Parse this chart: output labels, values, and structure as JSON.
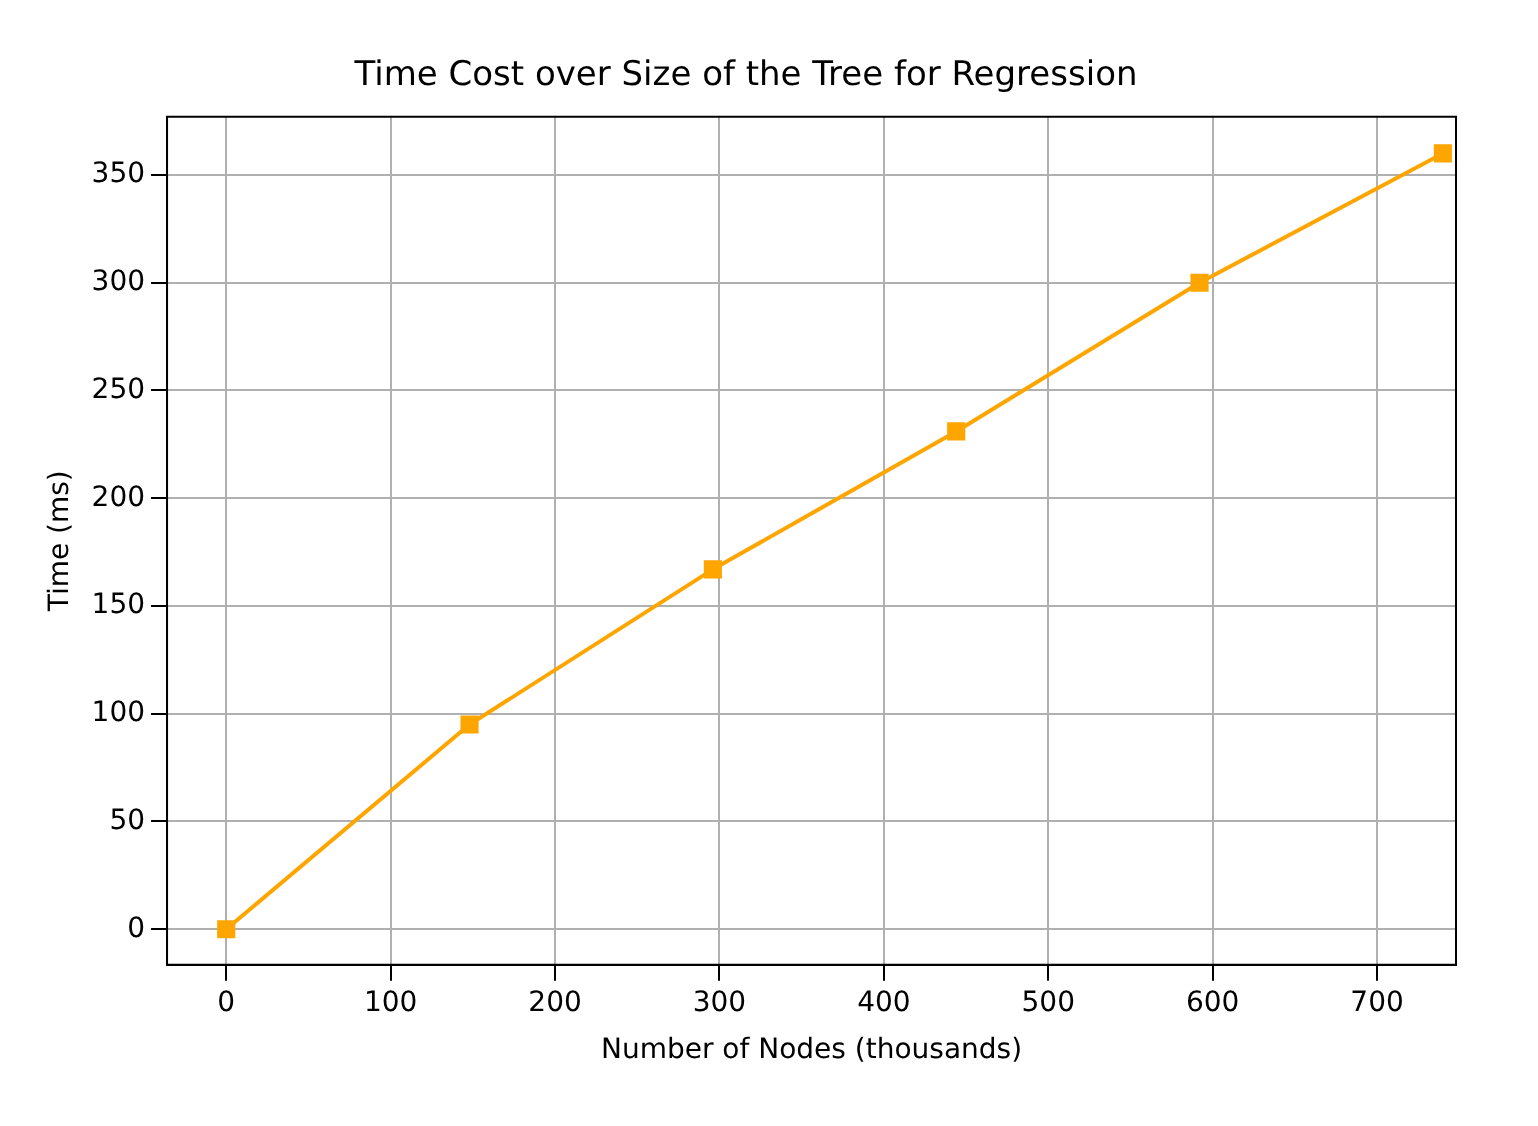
{
  "chart_data": {
    "type": "line",
    "title": "Time Cost over Size of the Tree for Regression",
    "xlabel": "Number of Nodes (thousands)",
    "ylabel": "Time (ms)",
    "x": [
      0,
      148,
      296,
      444,
      592,
      740
    ],
    "series": [
      {
        "color": "#ffa500",
        "values": [
          0,
          95,
          167,
          231,
          300,
          360
        ]
      }
    ],
    "xlim": [
      -36,
      748
    ],
    "xticks": [
      0,
      100,
      200,
      300,
      400,
      500,
      600,
      700
    ],
    "ylim": [
      -16.5,
      377
    ],
    "yticks": [
      0,
      50,
      100,
      150,
      200,
      250,
      300,
      350
    ],
    "grid": true,
    "marker": "square",
    "line_style": "solid",
    "legend": false
  }
}
